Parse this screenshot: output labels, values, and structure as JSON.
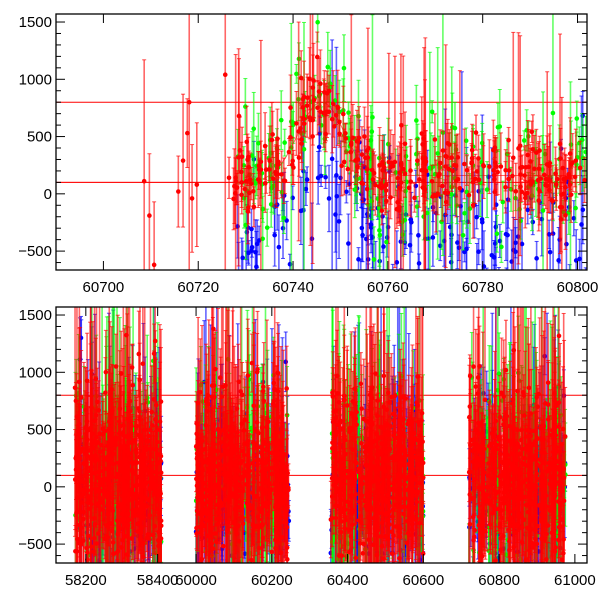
{
  "chart_data": [
    {
      "type": "scatter",
      "panel": "top",
      "title": "",
      "xlabel": "",
      "ylabel": "",
      "xlim": [
        60690,
        60802
      ],
      "ylim": [
        -665,
        1570
      ],
      "xticks": [
        60700,
        60720,
        60740,
        60760,
        60780,
        60800
      ],
      "xtick_labels": [
        "60700",
        "60720",
        "60740",
        "60760",
        "60780",
        "60800"
      ],
      "yticks": [
        -500,
        0,
        500,
        1000,
        1500
      ],
      "ytick_labels": [
        "−500",
        "0",
        "500",
        "1000",
        "1500"
      ],
      "reference_lines": [
        800,
        100
      ],
      "series_colors": {
        "red": "#ff0000",
        "green": "#00ff00",
        "blue": "#0000ff"
      },
      "explicit_points": [
        {
          "series": "red",
          "x": 60708.6,
          "y": 110,
          "err": 1060
        },
        {
          "series": "red",
          "x": 60709.7,
          "y": -190,
          "err": 540
        },
        {
          "series": "red",
          "x": 60710.7,
          "y": -620,
          "err": 550
        },
        {
          "series": "red",
          "x": 60715.8,
          "y": 20,
          "err": 310
        },
        {
          "series": "red",
          "x": 60716.8,
          "y": 290,
          "err": 580
        },
        {
          "series": "red",
          "x": 60717.7,
          "y": 530,
          "err": 300
        },
        {
          "series": "red",
          "x": 60718.1,
          "y": 800,
          "err": 1500
        },
        {
          "series": "red",
          "x": 60718.7,
          "y": -40,
          "err": 470
        },
        {
          "series": "red",
          "x": 60719.7,
          "y": 80,
          "err": 540
        },
        {
          "series": "red",
          "x": 60725.7,
          "y": 1040,
          "err": 1800
        },
        {
          "series": "red",
          "x": 60726.5,
          "y": 140,
          "err": 180
        },
        {
          "series": "red",
          "x": 60728.6,
          "y": 680,
          "err": 500
        }
      ],
      "dense_data": {
        "x_range": [
          60727,
          60802
        ],
        "baseline": 100,
        "peak": 800,
        "peak_x": 60746,
        "seed": 7
      }
    },
    {
      "type": "scatter",
      "panel": "bottom",
      "title": "",
      "xlabel": "",
      "ylabel": "",
      "broken_x_axis": [
        [
          58117,
          58490
        ],
        [
          59984,
          61032
        ]
      ],
      "ylim": [
        -665,
        1570
      ],
      "xticks": [
        58200,
        58400,
        60000,
        60200,
        60400,
        60600,
        60800,
        61000
      ],
      "xtick_labels": [
        "58200",
        "58400",
        "60000",
        "60200",
        "60400",
        "60600",
        "60800",
        "61000"
      ],
      "yticks": [
        -500,
        0,
        500,
        1000,
        1500
      ],
      "ytick_labels": [
        "−500",
        "0",
        "500",
        "1000",
        "1500"
      ],
      "reference_lines": [
        800,
        100
      ],
      "series_colors": {
        "red": "#ff0000",
        "green": "#00ff00",
        "blue": "#0000ff"
      },
      "seasons": [
        [
          58170,
          58410
        ],
        [
          60000,
          60245
        ],
        [
          60355,
          60600
        ],
        [
          60720,
          60975
        ]
      ],
      "dense_data": {
        "baseline": 100,
        "seed": 11
      }
    }
  ]
}
